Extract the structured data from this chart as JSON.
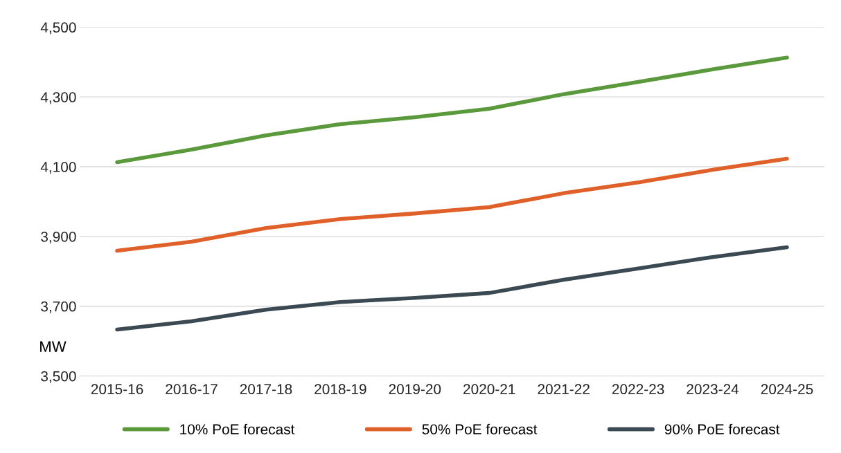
{
  "chart_data": {
    "type": "line",
    "ylabel": "MW",
    "categories": [
      "2015-16",
      "2016-17",
      "2017-18",
      "2018-19",
      "2019-20",
      "2020-21",
      "2021-22",
      "2022-23",
      "2023-24",
      "2024-25"
    ],
    "series": [
      {
        "name": "10% PoE forecast",
        "color": "#5b9a3c",
        "values": [
          4113,
          4149,
          4190,
          4222,
          4242,
          4266,
          4308,
          4343,
          4379,
          4413
        ]
      },
      {
        "name": "50% PoE forecast",
        "color": "#e0602a",
        "values": [
          3859,
          3885,
          3924,
          3950,
          3966,
          3984,
          4024,
          4055,
          4091,
          4123
        ]
      },
      {
        "name": "90% PoE forecast",
        "color": "#3b4a52",
        "values": [
          3633,
          3657,
          3690,
          3712,
          3724,
          3738,
          3776,
          3808,
          3841,
          3869
        ]
      }
    ],
    "ylim": [
      3500,
      4500
    ],
    "yticks": [
      {
        "value": 3500,
        "label": "3,500"
      },
      {
        "value": 3700,
        "label": "3,700"
      },
      {
        "value": 3900,
        "label": "3,900"
      },
      {
        "value": 4100,
        "label": "4,100"
      },
      {
        "value": 4300,
        "label": "4,300"
      },
      {
        "value": 4500,
        "label": "4,500"
      }
    ],
    "grid": "y",
    "legend": "bottom",
    "marker": "none",
    "line_style": "solid"
  }
}
